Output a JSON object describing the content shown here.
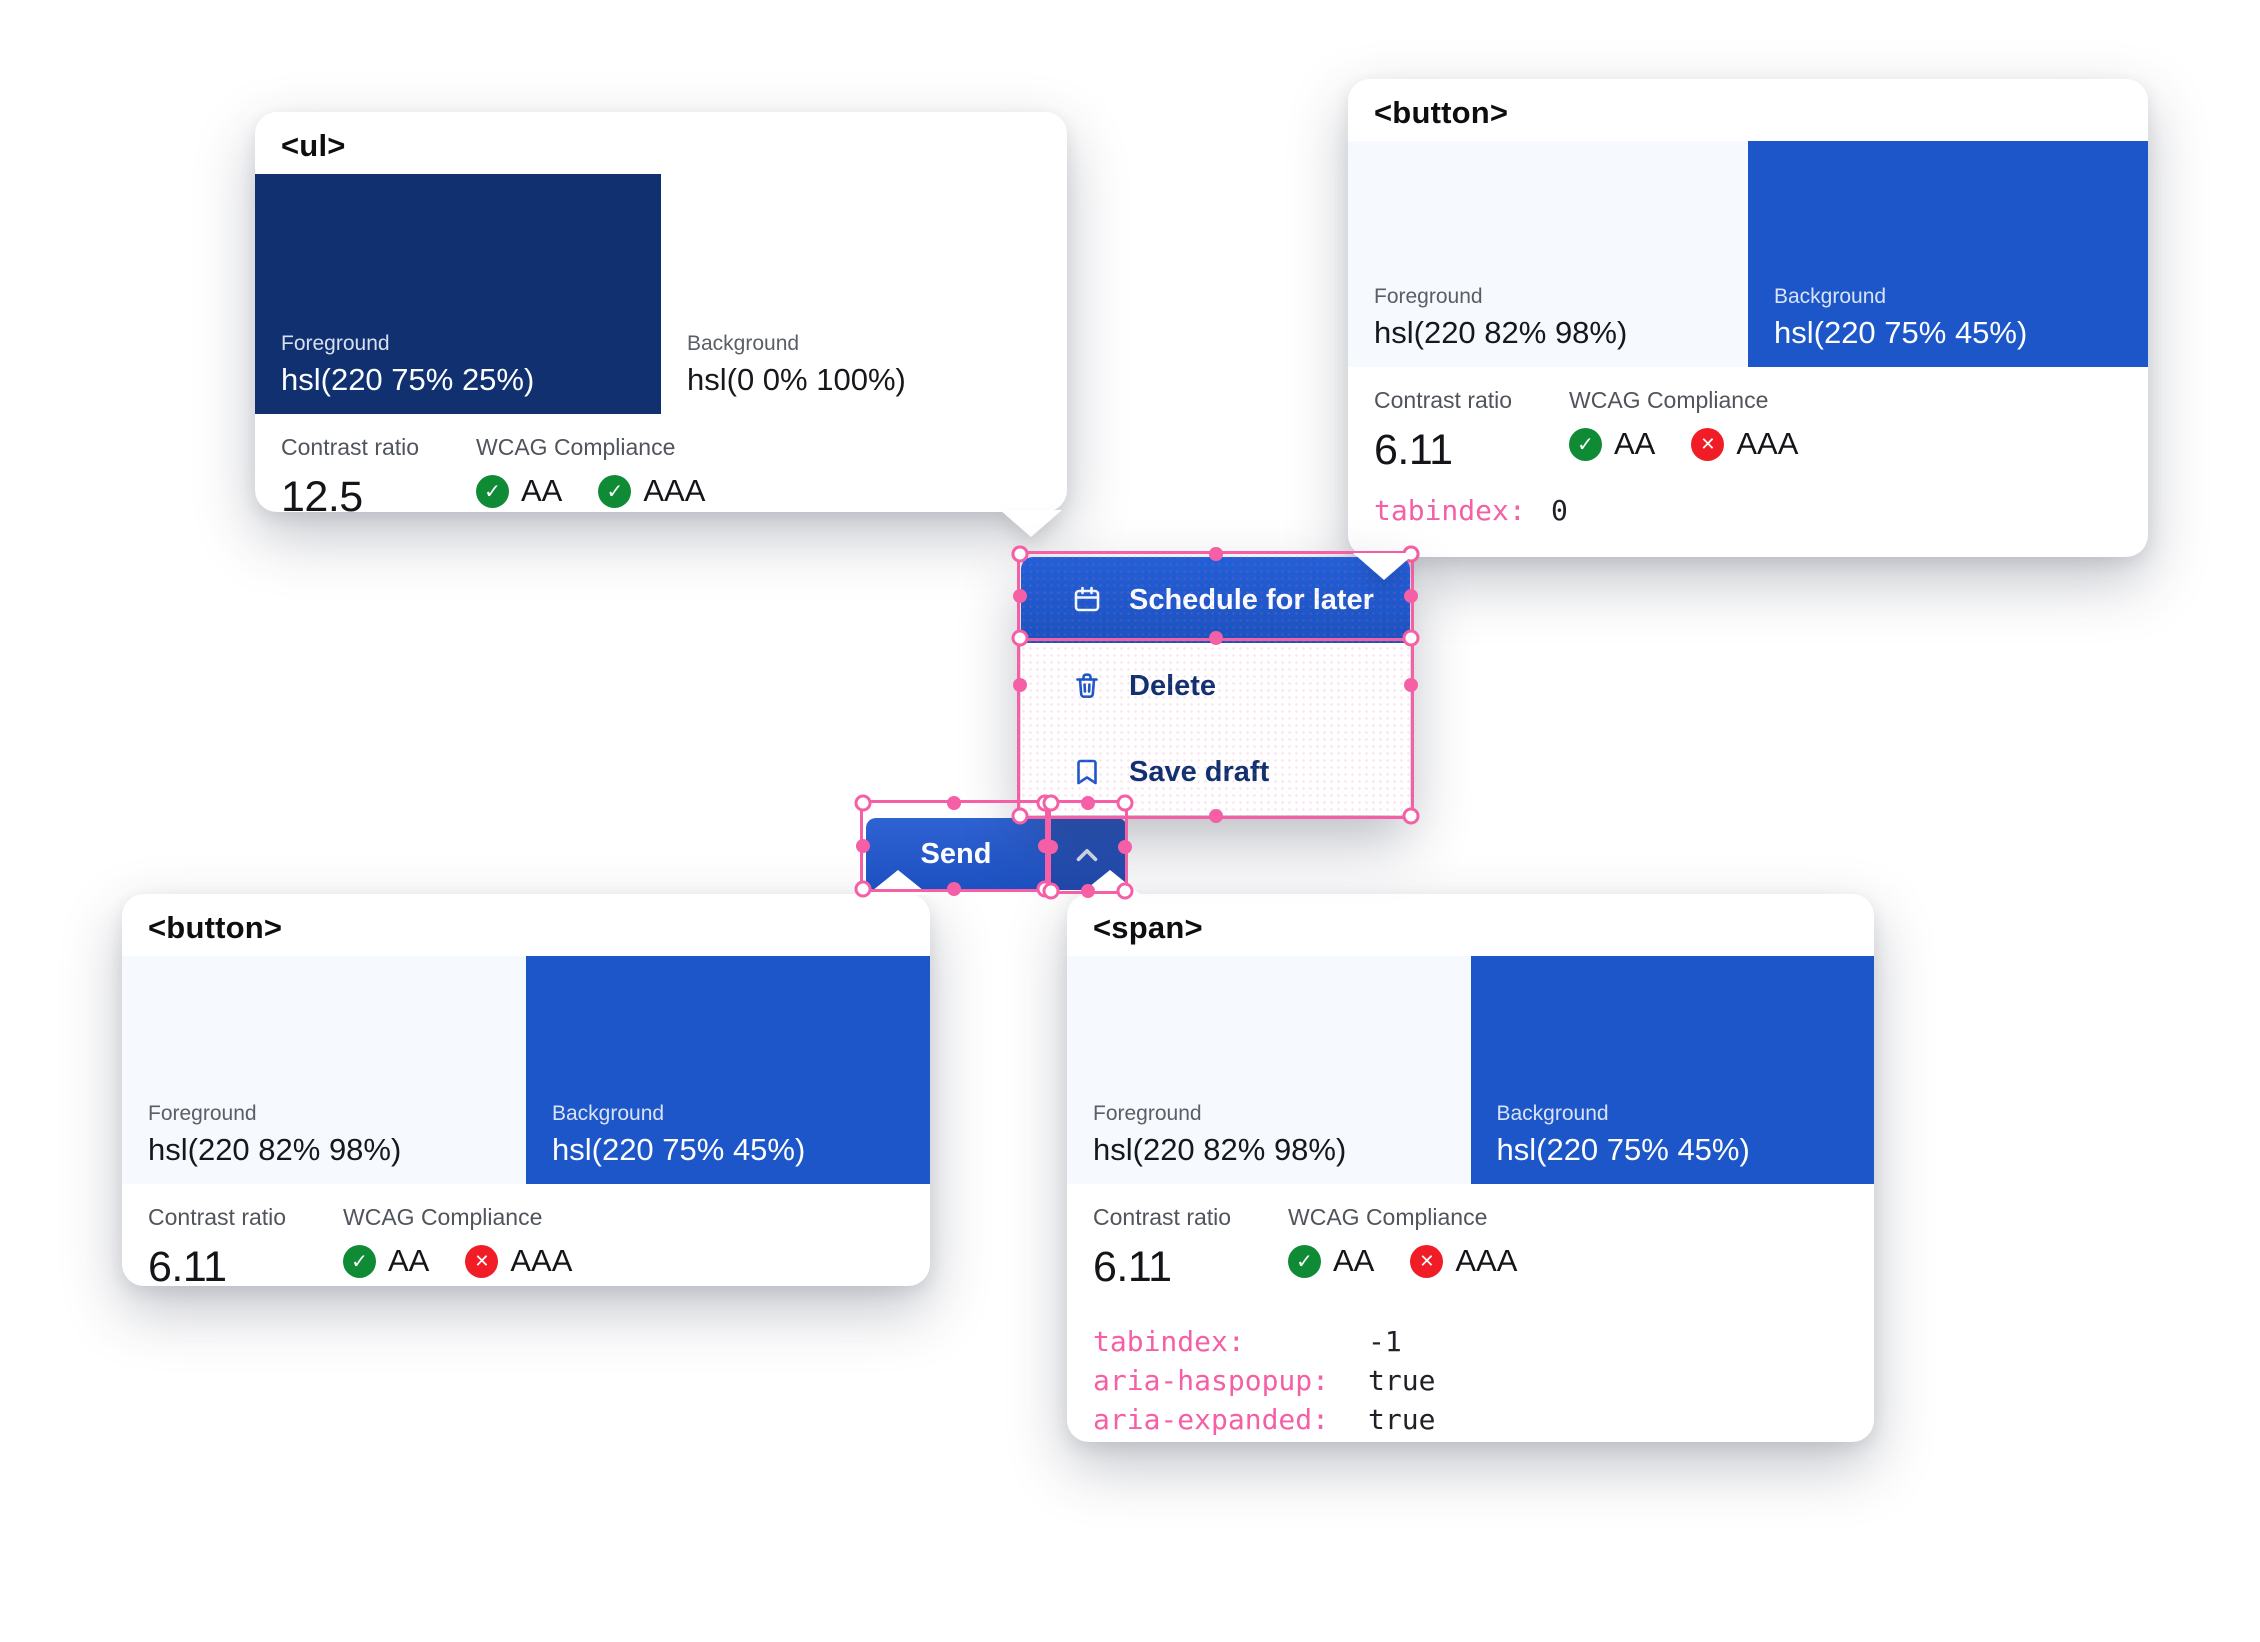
{
  "colors": {
    "accent_blue": "hsl(220 75% 45%)",
    "dark_navy": "hsl(220 75% 25%)",
    "light_foreground": "hsl(220 82% 98%)",
    "selection_pink": "#f45fa6",
    "pass_green": "#0f8a35",
    "fail_red": "#f01c26"
  },
  "cards": {
    "ul": {
      "tag": "<ul>",
      "foreground": {
        "label": "Foreground",
        "value": "hsl(220 75% 25%)"
      },
      "background": {
        "label": "Background",
        "value": "hsl(0 0% 100%)"
      },
      "contrast": {
        "label": "Contrast ratio",
        "value": "12.5"
      },
      "wcag": {
        "label": "WCAG Compliance",
        "aa": "AA",
        "aaa": "AAA",
        "aa_pass": true,
        "aaa_pass": true
      }
    },
    "button_top": {
      "tag": "<button>",
      "foreground": {
        "label": "Foreground",
        "value": "hsl(220 82% 98%)"
      },
      "background": {
        "label": "Background",
        "value": "hsl(220 75% 45%)"
      },
      "contrast": {
        "label": "Contrast ratio",
        "value": "6.11"
      },
      "wcag": {
        "label": "WCAG Compliance",
        "aa": "AA",
        "aaa": "AAA",
        "aa_pass": true,
        "aaa_pass": false
      },
      "attrs": [
        {
          "name": "tabindex:",
          "value": "0"
        }
      ]
    },
    "button_bottom": {
      "tag": "<button>",
      "foreground": {
        "label": "Foreground",
        "value": "hsl(220 82% 98%)"
      },
      "background": {
        "label": "Background",
        "value": "hsl(220 75% 45%)"
      },
      "contrast": {
        "label": "Contrast ratio",
        "value": "6.11"
      },
      "wcag": {
        "label": "WCAG Compliance",
        "aa": "AA",
        "aaa": "AAA",
        "aa_pass": true,
        "aaa_pass": false
      }
    },
    "span": {
      "tag": "<span>",
      "foreground": {
        "label": "Foreground",
        "value": "hsl(220 82% 98%)"
      },
      "background": {
        "label": "Background",
        "value": "hsl(220 75% 45%)"
      },
      "contrast": {
        "label": "Contrast ratio",
        "value": "6.11"
      },
      "wcag": {
        "label": "WCAG Compliance",
        "aa": "AA",
        "aaa": "AAA",
        "aa_pass": true,
        "aaa_pass": false
      },
      "attrs": [
        {
          "name": "tabindex:",
          "value": "-1"
        },
        {
          "name": "aria-haspopup:",
          "value": "true"
        },
        {
          "name": "aria-expanded:",
          "value": "true"
        }
      ]
    }
  },
  "menu": {
    "items": [
      {
        "icon": "calendar-icon",
        "label": "Schedule for later",
        "selected": true
      },
      {
        "icon": "trash-icon",
        "label": "Delete",
        "selected": false
      },
      {
        "icon": "bookmark-icon",
        "label": "Save draft",
        "selected": false
      }
    ]
  },
  "send_split_button": {
    "label": "Send",
    "menu_toggle_icon": "chevron-up-icon"
  }
}
